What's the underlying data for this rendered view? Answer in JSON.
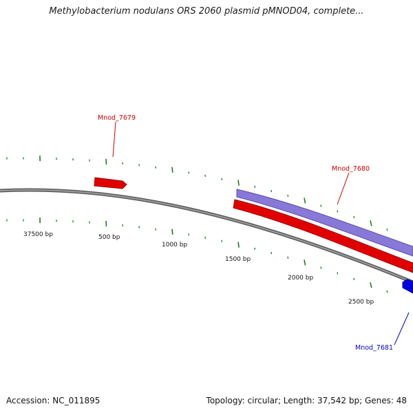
{
  "title": "Methylobacterium nodulans ORS 2060 plasmid pMNOD04, complete...",
  "footer": {
    "accession": "Accession: NC_011895",
    "summary": "Topology: circular; Length: 37,542 bp; Genes: 48"
  },
  "scale_labels": [
    "37500 bp",
    "500 bp",
    "1000 bp",
    "1500 bp",
    "2000 bp",
    "2500 bp"
  ],
  "genes": [
    {
      "name": "Mnod_7679",
      "strand": "+",
      "color": "#e00000"
    },
    {
      "name": "Mnod_7680",
      "strand": "+",
      "color": "#e00000"
    },
    {
      "name": "Mnod_7680",
      "strand": "+",
      "color": "#8878d8",
      "role": "cds-band"
    },
    {
      "name": "Mnod_7681",
      "strand": "-",
      "color": "#0000e0"
    }
  ],
  "colors": {
    "backbone": "#7a7a7a",
    "ticks": "#1a7a1a",
    "label_red": "#d00000",
    "label_blue": "#0000c8"
  }
}
